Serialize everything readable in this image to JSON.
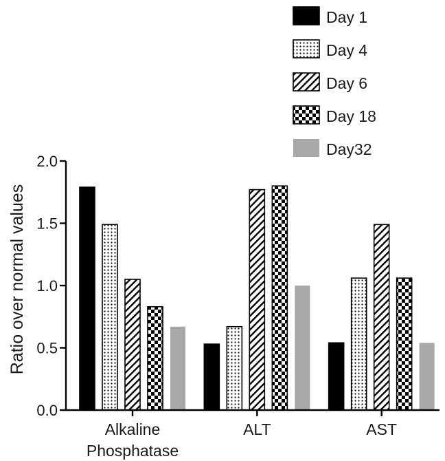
{
  "chart_data": {
    "type": "bar",
    "categories": [
      "Alkaline Phosphatase",
      "ALT",
      "AST"
    ],
    "category_lines": [
      [
        "Alkaline",
        "Phosphatase"
      ],
      [
        "ALT"
      ],
      [
        "AST"
      ]
    ],
    "series": [
      {
        "name": "Day 1",
        "values": [
          1.79,
          0.53,
          0.54
        ],
        "pattern": "solid-black",
        "color": "#000000"
      },
      {
        "name": "Day 4",
        "values": [
          1.49,
          0.67,
          1.06
        ],
        "pattern": "dots",
        "color": "#000000"
      },
      {
        "name": "Day 6",
        "values": [
          1.05,
          1.77,
          1.49
        ],
        "pattern": "diagonal-hatch",
        "color": "#000000"
      },
      {
        "name": "Day 18",
        "values": [
          0.83,
          1.8,
          1.06
        ],
        "pattern": "checkerboard",
        "color": "#000000"
      },
      {
        "name": "Day32",
        "values": [
          0.67,
          1.0,
          0.54
        ],
        "pattern": "solid-gray",
        "color": "#a8a8a8"
      }
    ],
    "ylabel": "Ratio over normal values",
    "ylim": [
      0,
      2.0
    ],
    "yticks": [
      "0.0",
      "0.5",
      "1.0",
      "1.5",
      "2.0"
    ],
    "grid": false,
    "legend_position": "top-right"
  }
}
